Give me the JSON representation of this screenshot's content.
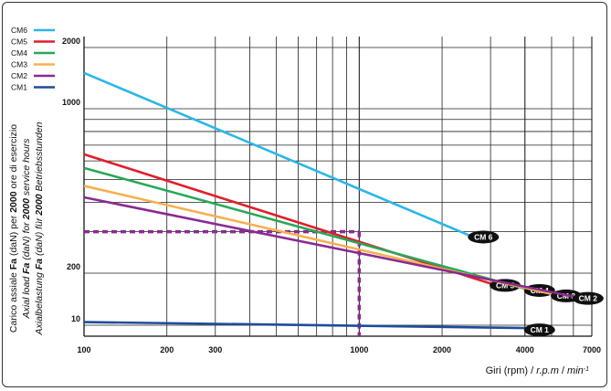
{
  "chart_data": {
    "type": "line",
    "x_scale": "log",
    "y_scale": "log",
    "x_ticks": [
      100,
      200,
      300,
      1000,
      2000,
      4000,
      7000
    ],
    "y_ticks": [
      10,
      200,
      1000,
      2000
    ],
    "xlim": [
      100,
      7000
    ],
    "ylim": [
      10,
      2000
    ],
    "grid": true,
    "legend_position": "top-left",
    "xlabel_parts": [
      "Giri (rpm) / ",
      "r.p.m",
      " / ",
      "min",
      "-1"
    ],
    "ylabel_lines": [
      [
        "Carico assiale ",
        "Fa",
        " (daN) per ",
        "2000",
        " ore di esercizio"
      ],
      [
        "Axial load ",
        "Fa",
        " (daN) for ",
        "2000",
        " service hours"
      ],
      [
        "Axialbelastung ",
        "Fa",
        " (daN) für ",
        "2000",
        " Betriebsstunden"
      ]
    ],
    "series": [
      {
        "name": "CM6",
        "label": "CM 6",
        "color": "#2ab7e6",
        "x": [
          100,
          2500
        ],
        "y": [
          1500,
          290
        ]
      },
      {
        "name": "CM5",
        "label": "CM 5",
        "color": "#e11e2b",
        "x": [
          100,
          3000
        ],
        "y": [
          640,
          110
        ]
      },
      {
        "name": "CM4",
        "label": "CM 4",
        "color": "#27a857",
        "x": [
          100,
          4000
        ],
        "y": [
          560,
          82
        ]
      },
      {
        "name": "CM3",
        "label": "CM 3",
        "color": "#f6b04f",
        "x": [
          100,
          5000
        ],
        "y": [
          470,
          60
        ]
      },
      {
        "name": "CM2",
        "label": "CM 2",
        "color": "#8a2a92",
        "x": [
          100,
          6000
        ],
        "y": [
          420,
          52
        ]
      },
      {
        "name": "CM1",
        "label": "CM 1",
        "color": "#1f4b9a",
        "x": [
          100,
          4000
        ],
        "y": [
          12,
          8.5
        ]
      }
    ],
    "annotation": {
      "x": 1000,
      "y": 300,
      "color": "#8a2a92"
    }
  }
}
